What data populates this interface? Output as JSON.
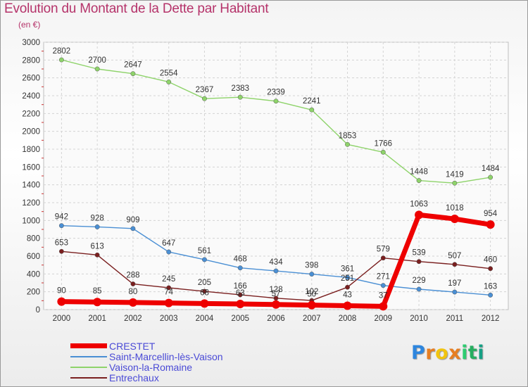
{
  "header": {
    "title": "Evolution du Montant de la Dette par Habitant",
    "unit": "(en €)"
  },
  "logo": {
    "letters": [
      "P",
      "r",
      "o",
      "x",
      "i",
      "t",
      "i"
    ],
    "colors": [
      "#2e86de",
      "#e67e22",
      "#f1c40f",
      "#e67e22",
      "#2ecc71",
      "#27ae60",
      "#16a085"
    ]
  },
  "chart_data": {
    "type": "line",
    "title": "Evolution du Montant de la Dette par Habitant",
    "subtitle": "(en €)",
    "xlabel": "",
    "ylabel": "",
    "x": [
      "2000",
      "2001",
      "2002",
      "2003",
      "2004",
      "2005",
      "2006",
      "2007",
      "2008",
      "2009",
      "2010",
      "2011",
      "2012"
    ],
    "ylim": [
      0,
      3000
    ],
    "yticks": [
      "0",
      "200",
      "400",
      "600",
      "800",
      "1000",
      "1200",
      "1400",
      "1600",
      "1800",
      "2000",
      "2200",
      "2400",
      "2600",
      "2800",
      "3000"
    ],
    "grid": true,
    "legend_position": "bottom-left",
    "series": [
      {
        "name": "CRESTET",
        "color": "#ee0000",
        "values": [
          90,
          85,
          80,
          74,
          68,
          63,
          57,
          50,
          43,
          37,
          1063,
          1018,
          954
        ],
        "labels": [
          "90",
          "85",
          "80",
          "74",
          "68",
          "63",
          "57",
          "50",
          "43",
          "37",
          "1063",
          "1018",
          "954"
        ]
      },
      {
        "name": "Saint-Marcellin-lès-Vaison",
        "color": "#4a8fd4",
        "values": [
          942,
          928,
          909,
          647,
          561,
          468,
          434,
          398,
          361,
          271,
          229,
          197,
          163
        ],
        "labels": [
          "942",
          "928",
          "909",
          "647",
          "561",
          "468",
          "434",
          "398",
          "361",
          "271",
          "229",
          "197",
          "163"
        ]
      },
      {
        "name": "Vaison-la-Romaine",
        "color": "#8ed36a",
        "values": [
          2802,
          2700,
          2647,
          2554,
          2367,
          2383,
          2339,
          2241,
          1853,
          1766,
          1448,
          1419,
          1484
        ],
        "labels": [
          "2802",
          "2700",
          "2647",
          "2554",
          "2367",
          "2383",
          "2339",
          "2241",
          "1853",
          "1766",
          "1448",
          "1419",
          "1484"
        ]
      },
      {
        "name": "Entrechaux",
        "color": "#7a1f1f",
        "values": [
          653,
          613,
          288,
          245,
          205,
          166,
          128,
          102,
          251,
          579,
          539,
          507,
          460
        ],
        "labels": [
          "653",
          "613",
          "288",
          "245",
          "205",
          "166",
          "128",
          "102",
          "251",
          "579",
          "539",
          "507",
          "460"
        ]
      }
    ]
  }
}
